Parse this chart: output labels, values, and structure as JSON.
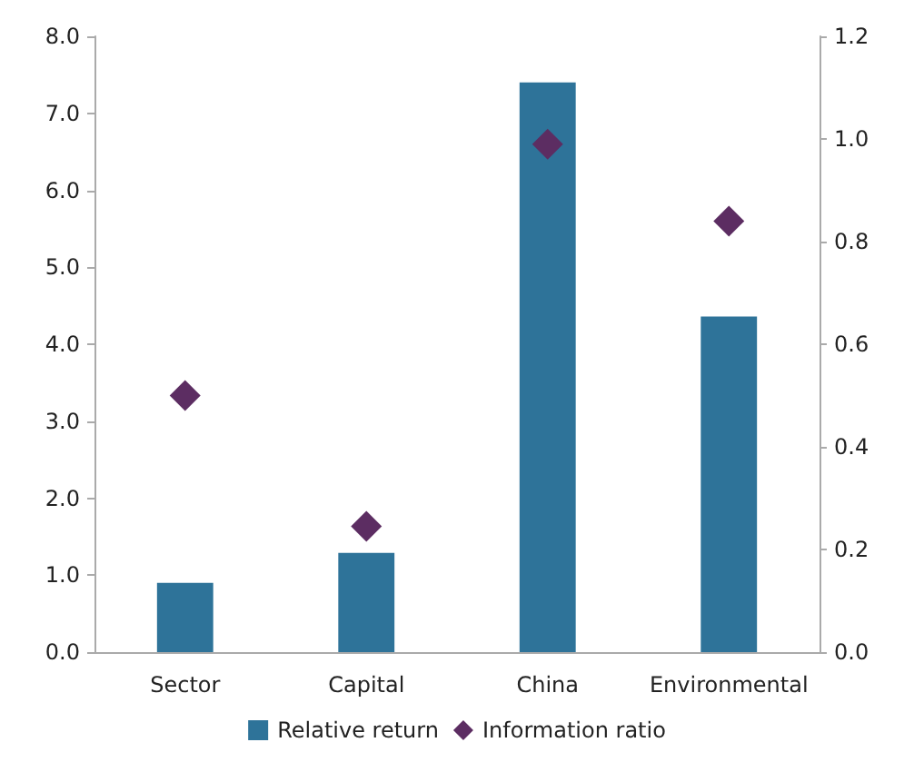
{
  "chart_data": {
    "type": "bar",
    "categories": [
      "Sector",
      "Capital",
      "China",
      "Environmental"
    ],
    "series": [
      {
        "name": "Relative return",
        "color": "#2e7399",
        "values": [
          0.9,
          1.29,
          7.4,
          4.36
        ]
      },
      {
        "name": "Information ratio",
        "type": "scatter",
        "axis": "y2",
        "color": "#5c2d62",
        "marker": "diamond",
        "values": [
          0.5,
          0.245,
          0.99,
          0.84
        ]
      }
    ],
    "ylim": [
      0,
      8
    ],
    "yticks": [
      {
        "value": 0,
        "label": "0.0"
      },
      {
        "value": 1,
        "label": "1.0"
      },
      {
        "value": 2,
        "label": "2.0"
      },
      {
        "value": 3,
        "label": "3.0"
      },
      {
        "value": 4,
        "label": "4.0"
      },
      {
        "value": 5,
        "label": "5.0"
      },
      {
        "value": 6,
        "label": "6.0"
      },
      {
        "value": 7,
        "label": "7.0"
      },
      {
        "value": 8,
        "label": "8.0"
      }
    ],
    "y2lim": [
      0,
      1.2
    ],
    "y2ticks": [
      {
        "value": 0,
        "label": "0.0"
      },
      {
        "value": 0.2,
        "label": "0.2"
      },
      {
        "value": 0.4,
        "label": "0.4"
      },
      {
        "value": 0.6,
        "label": "0.6"
      },
      {
        "value": 0.8,
        "label": "0.8"
      },
      {
        "value": 1,
        "label": "1.0"
      },
      {
        "value": 1.2,
        "label": "1.2"
      }
    ],
    "grid": false,
    "legend": "bottom"
  }
}
